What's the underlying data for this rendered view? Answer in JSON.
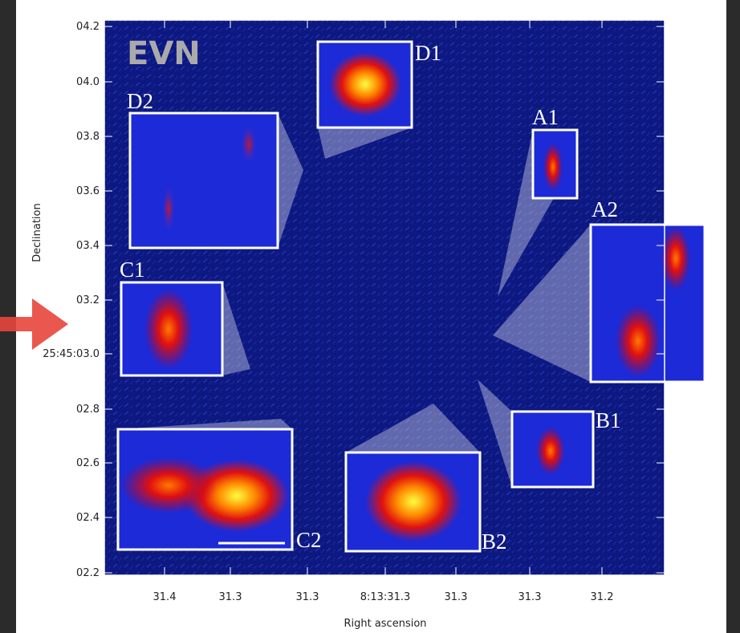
{
  "axes": {
    "x_label": "Right ascension",
    "y_label": "Declination",
    "x_ticks": [
      "31.4",
      "31.3",
      "31.3",
      "8:13:31.3",
      "31.3",
      "31.3",
      "31.2"
    ],
    "y_ticks": [
      "04.2",
      "04.0",
      "03.8",
      "03.6",
      "03.4",
      "03.2",
      "25:45:03.0",
      "02.8",
      "02.6",
      "02.4",
      "02.2"
    ]
  },
  "overlay_label": "EVN",
  "insets": [
    {
      "label": "D1"
    },
    {
      "label": "D2"
    },
    {
      "label": "A1"
    },
    {
      "label": "A2"
    },
    {
      "label": "C1"
    },
    {
      "label": "B1"
    },
    {
      "label": "B2"
    },
    {
      "label": "C2"
    }
  ]
}
